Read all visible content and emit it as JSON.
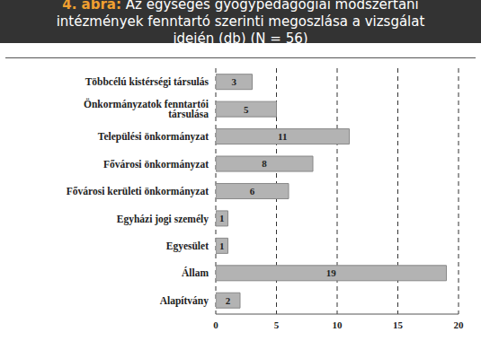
{
  "chart_data": {
    "type": "bar",
    "title": "4. ábra: Az egységes gyógypedagógiai módszertani intézmények fenntartó szerinti megoszlása a vizsgálat idején (db) (N = 56)",
    "orientation": "horizontal",
    "categories": [
      "Többcélú kistérségi társulás",
      "Önkormányzatok fenntartói társulása",
      "Települési önkormányzat",
      "Fővárosi önkormányzat",
      "Fővárosi kerületi önkormányzat",
      "Egyházi jogi személy",
      "Egyesület",
      "Állam",
      "Alapítvány"
    ],
    "values": [
      3,
      5,
      11,
      8,
      6,
      1,
      1,
      19,
      2
    ],
    "color": "#b3b3b3",
    "xlim": [
      0,
      20
    ],
    "xticks": [
      0,
      5,
      10,
      15,
      20
    ],
    "grid": true,
    "data_labels": true
  }
}
